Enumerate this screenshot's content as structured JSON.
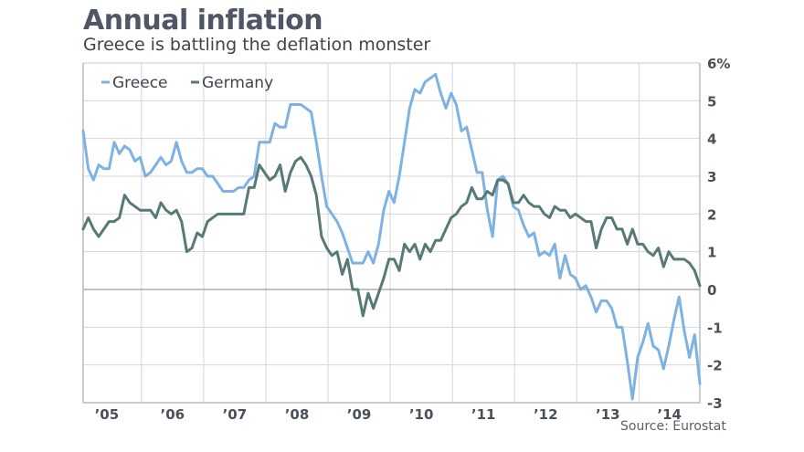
{
  "header": {
    "title": "Annual inflation",
    "subtitle": "Greece is battling the deflation monster"
  },
  "source": "Source: Eurostat",
  "chart_data": {
    "type": "line",
    "title": "Annual inflation",
    "subtitle": "Greece is battling the deflation monster",
    "xlabel": "",
    "ylabel": "",
    "x_start": "2005-01",
    "x_end": "2014-12",
    "frequency": "monthly",
    "x_tick_labels": [
      "’05",
      "’06",
      "’07",
      "’08",
      "’09",
      "’10",
      "’11",
      "’12",
      "’13",
      "’14"
    ],
    "y_tick_labels": [
      "6%",
      "5",
      "4",
      "3",
      "2",
      "1",
      "0",
      "-1",
      "-2",
      "-3"
    ],
    "y_ticks": [
      6,
      5,
      4,
      3,
      2,
      1,
      0,
      -1,
      -2,
      -3
    ],
    "ylim": [
      -3,
      6
    ],
    "grid": true,
    "legend_position": "top-left",
    "source": "Source: Eurostat",
    "series": [
      {
        "name": "Greece",
        "color": "#7eb2e2",
        "values": [
          4.2,
          3.2,
          2.9,
          3.3,
          3.2,
          3.2,
          3.9,
          3.6,
          3.8,
          3.7,
          3.4,
          3.5,
          3.0,
          3.1,
          3.3,
          3.5,
          3.3,
          3.4,
          3.9,
          3.4,
          3.1,
          3.1,
          3.2,
          3.2,
          3.0,
          3.0,
          2.8,
          2.6,
          2.6,
          2.6,
          2.7,
          2.7,
          2.9,
          3.0,
          3.9,
          3.9,
          3.9,
          4.4,
          4.3,
          4.3,
          4.9,
          4.9,
          4.9,
          4.8,
          4.7,
          3.9,
          3.0,
          2.2,
          2.0,
          1.8,
          1.5,
          1.1,
          0.7,
          0.7,
          0.7,
          1.0,
          0.7,
          1.2,
          2.1,
          2.6,
          2.3,
          3.0,
          3.9,
          4.8,
          5.3,
          5.2,
          5.5,
          5.6,
          5.7,
          5.2,
          4.8,
          5.2,
          4.9,
          4.2,
          4.3,
          3.7,
          3.1,
          3.1,
          2.1,
          1.4,
          2.9,
          3.0,
          2.8,
          2.2,
          2.1,
          1.7,
          1.4,
          1.5,
          0.9,
          1.0,
          0.9,
          1.2,
          0.3,
          0.9,
          0.4,
          0.3,
          0.0,
          0.1,
          -0.2,
          -0.6,
          -0.3,
          -0.3,
          -0.5,
          -1.0,
          -1.0,
          -1.9,
          -2.9,
          -1.8,
          -1.4,
          -0.9,
          -1.5,
          -1.6,
          -2.1,
          -1.5,
          -0.8,
          -0.2,
          -1.1,
          -1.8,
          -1.2,
          -2.5
        ]
      },
      {
        "name": "Germany",
        "color": "#587a76",
        "values": [
          1.6,
          1.9,
          1.6,
          1.4,
          1.6,
          1.8,
          1.8,
          1.9,
          2.5,
          2.3,
          2.2,
          2.1,
          2.1,
          2.1,
          1.9,
          2.3,
          2.1,
          2.0,
          2.1,
          1.8,
          1.0,
          1.1,
          1.5,
          1.4,
          1.8,
          1.9,
          2.0,
          2.0,
          2.0,
          2.0,
          2.0,
          2.0,
          2.7,
          2.7,
          3.3,
          3.1,
          2.9,
          3.0,
          3.3,
          2.6,
          3.1,
          3.4,
          3.5,
          3.3,
          3.0,
          2.5,
          1.4,
          1.1,
          0.9,
          1.0,
          0.4,
          0.8,
          0.0,
          0.0,
          -0.7,
          -0.1,
          -0.5,
          -0.1,
          0.3,
          0.8,
          0.8,
          0.5,
          1.2,
          1.0,
          1.2,
          0.8,
          1.2,
          1.0,
          1.3,
          1.3,
          1.6,
          1.9,
          2.0,
          2.2,
          2.3,
          2.7,
          2.4,
          2.4,
          2.6,
          2.5,
          2.9,
          2.9,
          2.8,
          2.3,
          2.3,
          2.5,
          2.3,
          2.2,
          2.2,
          2.0,
          1.9,
          2.2,
          2.1,
          2.1,
          1.9,
          2.0,
          1.9,
          1.8,
          1.8,
          1.1,
          1.6,
          1.9,
          1.9,
          1.6,
          1.6,
          1.2,
          1.6,
          1.2,
          1.2,
          1.0,
          0.9,
          1.1,
          0.6,
          1.0,
          0.8,
          0.8,
          0.8,
          0.7,
          0.5,
          0.1
        ]
      }
    ]
  }
}
